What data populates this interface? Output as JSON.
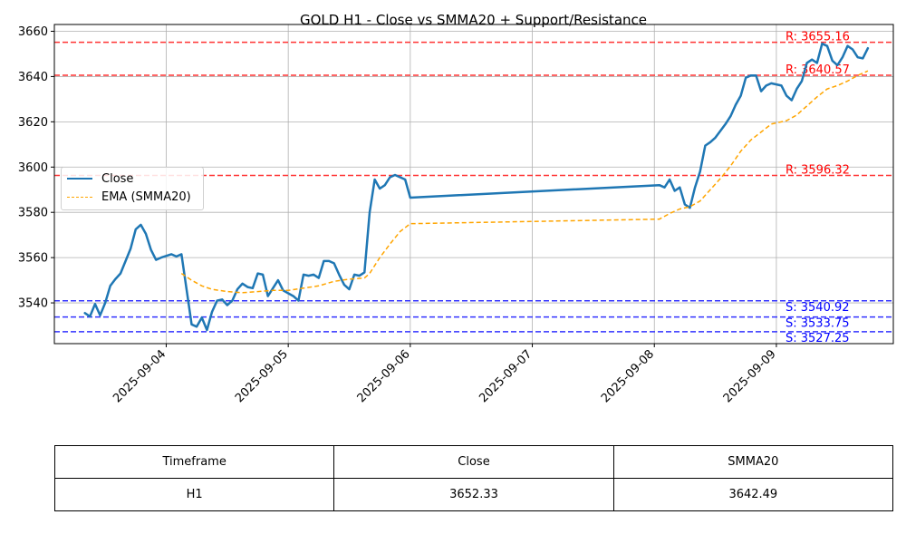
{
  "chart_data": {
    "type": "line",
    "title": "GOLD H1 - Close vs SMMA20 + Support/Resistance",
    "xlabel": "",
    "ylabel": "",
    "x_ticks": [
      "2025-09-04",
      "2025-09-05",
      "2025-09-06",
      "2025-09-07",
      "2025-09-08",
      "2025-09-09"
    ],
    "y_ticks": [
      3540,
      3560,
      3580,
      3600,
      3620,
      3640,
      3660
    ],
    "xlim": [
      "2025-09-03 02:00",
      "2025-09-09 23:00"
    ],
    "ylim": [
      3522,
      3663
    ],
    "grid": true,
    "legend_position": "center-left",
    "series": [
      {
        "name": "Close",
        "color": "#1f77b4",
        "style": "solid",
        "points": [
          [
            "2025-09-03 08:00",
            3535.5
          ],
          [
            "2025-09-03 09:00",
            3534
          ],
          [
            "2025-09-03 10:00",
            3539.5
          ],
          [
            "2025-09-03 11:00",
            3534.5
          ],
          [
            "2025-09-03 12:00",
            3540
          ],
          [
            "2025-09-03 13:00",
            3547.5
          ],
          [
            "2025-09-03 14:00",
            3550.5
          ],
          [
            "2025-09-03 15:00",
            3553
          ],
          [
            "2025-09-03 16:00",
            3558.5
          ],
          [
            "2025-09-03 17:00",
            3564
          ],
          [
            "2025-09-03 18:00",
            3572.5
          ],
          [
            "2025-09-03 19:00",
            3574.5
          ],
          [
            "2025-09-03 20:00",
            3570.5
          ],
          [
            "2025-09-03 21:00",
            3563.5
          ],
          [
            "2025-09-03 22:00",
            3559
          ],
          [
            "2025-09-03 23:00",
            3560
          ],
          [
            "2025-09-04 01:00",
            3561.5
          ],
          [
            "2025-09-04 02:00",
            3560.5
          ],
          [
            "2025-09-04 03:00",
            3561.5
          ],
          [
            "2025-09-04 04:00",
            3546
          ],
          [
            "2025-09-04 05:00",
            3530.5
          ],
          [
            "2025-09-04 06:00",
            3529.5
          ],
          [
            "2025-09-04 07:00",
            3533.5
          ],
          [
            "2025-09-04 08:00",
            3528
          ],
          [
            "2025-09-04 09:00",
            3536
          ],
          [
            "2025-09-04 10:00",
            3541
          ],
          [
            "2025-09-04 11:00",
            3541.5
          ],
          [
            "2025-09-04 12:00",
            3539
          ],
          [
            "2025-09-04 13:00",
            3541
          ],
          [
            "2025-09-04 14:00",
            3546
          ],
          [
            "2025-09-04 15:00",
            3548.5
          ],
          [
            "2025-09-04 16:00",
            3547
          ],
          [
            "2025-09-04 17:00",
            3546.5
          ],
          [
            "2025-09-04 18:00",
            3553
          ],
          [
            "2025-09-04 19:00",
            3552.5
          ],
          [
            "2025-09-04 20:00",
            3543
          ],
          [
            "2025-09-04 21:00",
            3546.5
          ],
          [
            "2025-09-04 22:00",
            3550
          ],
          [
            "2025-09-04 23:00",
            3545.5
          ],
          [
            "2025-09-05 01:00",
            3543
          ],
          [
            "2025-09-05 02:00",
            3541
          ],
          [
            "2025-09-05 03:00",
            3552.5
          ],
          [
            "2025-09-05 04:00",
            3552
          ],
          [
            "2025-09-05 05:00",
            3552.5
          ],
          [
            "2025-09-05 06:00",
            3551
          ],
          [
            "2025-09-05 07:00",
            3558.5
          ],
          [
            "2025-09-05 08:00",
            3558.5
          ],
          [
            "2025-09-05 09:00",
            3557.5
          ],
          [
            "2025-09-05 10:00",
            3552.5
          ],
          [
            "2025-09-05 11:00",
            3548
          ],
          [
            "2025-09-05 12:00",
            3546
          ],
          [
            "2025-09-05 13:00",
            3552.5
          ],
          [
            "2025-09-05 14:00",
            3552
          ],
          [
            "2025-09-05 15:00",
            3553.5
          ],
          [
            "2025-09-05 16:00",
            3580
          ],
          [
            "2025-09-05 17:00",
            3594.5
          ],
          [
            "2025-09-05 18:00",
            3590.5
          ],
          [
            "2025-09-05 19:00",
            3592
          ],
          [
            "2025-09-05 20:00",
            3595.5
          ],
          [
            "2025-09-05 21:00",
            3596.5
          ],
          [
            "2025-09-05 22:00",
            3595.5
          ],
          [
            "2025-09-05 23:00",
            3594.5
          ],
          [
            "2025-09-06 00:00",
            3586.5
          ],
          [
            "2025-09-08 01:00",
            3592
          ],
          [
            "2025-09-08 02:00",
            3591
          ],
          [
            "2025-09-08 03:00",
            3594.5
          ],
          [
            "2025-09-08 04:00",
            3589.5
          ],
          [
            "2025-09-08 05:00",
            3591
          ],
          [
            "2025-09-08 06:00",
            3583.5
          ],
          [
            "2025-09-08 07:00",
            3582
          ],
          [
            "2025-09-08 08:00",
            3591
          ],
          [
            "2025-09-08 09:00",
            3598
          ],
          [
            "2025-09-08 10:00",
            3609.5
          ],
          [
            "2025-09-08 11:00",
            3611
          ],
          [
            "2025-09-08 12:00",
            3613
          ],
          [
            "2025-09-08 13:00",
            3616
          ],
          [
            "2025-09-08 14:00",
            3619
          ],
          [
            "2025-09-08 15:00",
            3622.5
          ],
          [
            "2025-09-08 16:00",
            3627.5
          ],
          [
            "2025-09-08 17:00",
            3631.5
          ],
          [
            "2025-09-08 18:00",
            3639.5
          ],
          [
            "2025-09-08 19:00",
            3640.5
          ],
          [
            "2025-09-08 20:00",
            3640.5
          ],
          [
            "2025-09-08 21:00",
            3633.5
          ],
          [
            "2025-09-08 22:00",
            3636
          ],
          [
            "2025-09-08 23:00",
            3637
          ],
          [
            "2025-09-09 01:00",
            3636
          ],
          [
            "2025-09-09 02:00",
            3631.5
          ],
          [
            "2025-09-09 03:00",
            3629.5
          ],
          [
            "2025-09-09 04:00",
            3634.5
          ],
          [
            "2025-09-09 05:00",
            3638
          ],
          [
            "2025-09-09 06:00",
            3646
          ],
          [
            "2025-09-09 07:00",
            3647.5
          ],
          [
            "2025-09-09 08:00",
            3646
          ],
          [
            "2025-09-09 09:00",
            3654.5
          ],
          [
            "2025-09-09 10:00",
            3653.5
          ],
          [
            "2025-09-09 11:00",
            3647
          ],
          [
            "2025-09-09 12:00",
            3645
          ],
          [
            "2025-09-09 13:00",
            3648.5
          ],
          [
            "2025-09-09 14:00",
            3653.5
          ],
          [
            "2025-09-09 15:00",
            3652
          ],
          [
            "2025-09-09 16:00",
            3648.5
          ],
          [
            "2025-09-09 17:00",
            3648
          ],
          [
            "2025-09-09 18:00",
            3652.5
          ]
        ]
      },
      {
        "name": "EMA (SMMA20)",
        "color": "#ffa500",
        "style": "dashed",
        "points": [
          [
            "2025-09-04 03:00",
            3553
          ],
          [
            "2025-09-04 05:00",
            3550
          ],
          [
            "2025-09-04 07:00",
            3547.5
          ],
          [
            "2025-09-04 09:00",
            3546
          ],
          [
            "2025-09-04 12:00",
            3545
          ],
          [
            "2025-09-04 15:00",
            3544.5
          ],
          [
            "2025-09-04 18:00",
            3545
          ],
          [
            "2025-09-04 21:00",
            3545.5
          ],
          [
            "2025-09-05 00:00",
            3545.5
          ],
          [
            "2025-09-05 03:00",
            3546.5
          ],
          [
            "2025-09-05 06:00",
            3547.5
          ],
          [
            "2025-09-05 09:00",
            3549.5
          ],
          [
            "2025-09-05 12:00",
            3550.5
          ],
          [
            "2025-09-05 15:00",
            3551
          ],
          [
            "2025-09-05 16:00",
            3553
          ],
          [
            "2025-09-05 18:00",
            3560
          ],
          [
            "2025-09-05 20:00",
            3566
          ],
          [
            "2025-09-05 22:00",
            3571.5
          ],
          [
            "2025-09-06 00:00",
            3575
          ],
          [
            "2025-09-08 01:00",
            3577
          ],
          [
            "2025-09-08 03:00",
            3579.5
          ],
          [
            "2025-09-08 05:00",
            3581.5
          ],
          [
            "2025-09-08 07:00",
            3582.5
          ],
          [
            "2025-09-08 09:00",
            3585
          ],
          [
            "2025-09-08 11:00",
            3590
          ],
          [
            "2025-09-08 13:00",
            3595
          ],
          [
            "2025-09-08 15:00",
            3600.5
          ],
          [
            "2025-09-08 17:00",
            3607
          ],
          [
            "2025-09-08 19:00",
            3612
          ],
          [
            "2025-09-08 21:00",
            3615.5
          ],
          [
            "2025-09-08 23:00",
            3619
          ],
          [
            "2025-09-09 02:00",
            3620.5
          ],
          [
            "2025-09-09 04:00",
            3623
          ],
          [
            "2025-09-09 06:00",
            3627
          ],
          [
            "2025-09-09 08:00",
            3631
          ],
          [
            "2025-09-09 10:00",
            3634.5
          ],
          [
            "2025-09-09 12:00",
            3636
          ],
          [
            "2025-09-09 14:00",
            3638
          ],
          [
            "2025-09-09 16:00",
            3640.5
          ],
          [
            "2025-09-09 18:00",
            3642.5
          ]
        ]
      }
    ],
    "resistance_levels": [
      3655.16,
      3640.57,
      3596.32
    ],
    "support_levels": [
      3540.92,
      3533.75,
      3527.25
    ],
    "resistance_labels": [
      "R: 3655.16",
      "R: 3640.57",
      "R: 3596.32"
    ],
    "support_labels": [
      "S: 3540.92",
      "S: 3533.75",
      "S: 3527.25"
    ],
    "resistance_color": "#ff3333",
    "support_color": "#3333ff",
    "label_colors": {
      "resistance": "#ff0000",
      "support": "#0000ff"
    },
    "axes_color": "#000000",
    "grid_color": "#b0b0b0"
  },
  "table": {
    "headers": [
      "Timeframe",
      "Close",
      "SMMA20"
    ],
    "row": [
      "H1",
      "3652.33",
      "3642.49"
    ]
  }
}
